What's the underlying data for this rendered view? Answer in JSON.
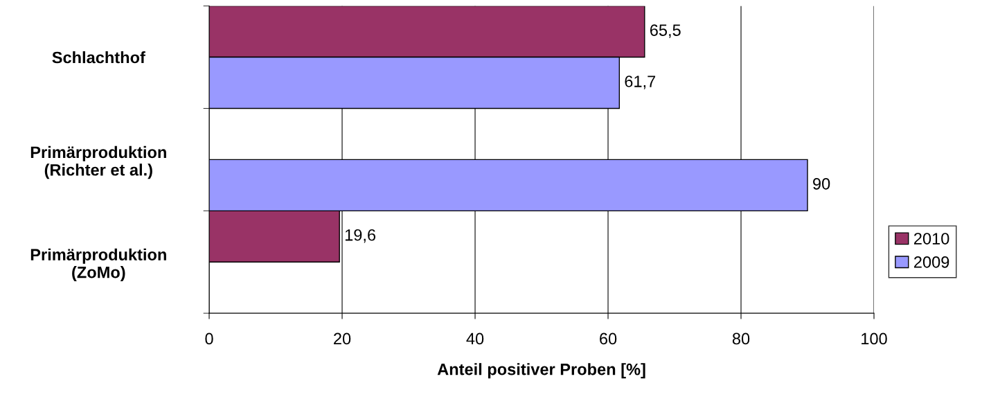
{
  "chart_data": {
    "type": "bar",
    "orientation": "horizontal",
    "categories": [
      "Schlachthof",
      "Primärproduktion\n(Richter et al.)",
      "Primärproduktion\n(ZoMo)"
    ],
    "series": [
      {
        "name": "2010",
        "color": "#993366",
        "values": [
          65.5,
          null,
          19.6
        ],
        "value_labels": [
          "65,5",
          null,
          "19,6"
        ]
      },
      {
        "name": "2009",
        "color": "#9999ff",
        "values": [
          61.7,
          90,
          null
        ],
        "value_labels": [
          "61,7",
          "90",
          null
        ]
      }
    ],
    "xlabel": "Anteil positiver Proben [%]",
    "xlim": [
      0,
      100
    ],
    "xticks": [
      0,
      20,
      40,
      60,
      80,
      100
    ],
    "grid": "x",
    "legend": "right"
  }
}
